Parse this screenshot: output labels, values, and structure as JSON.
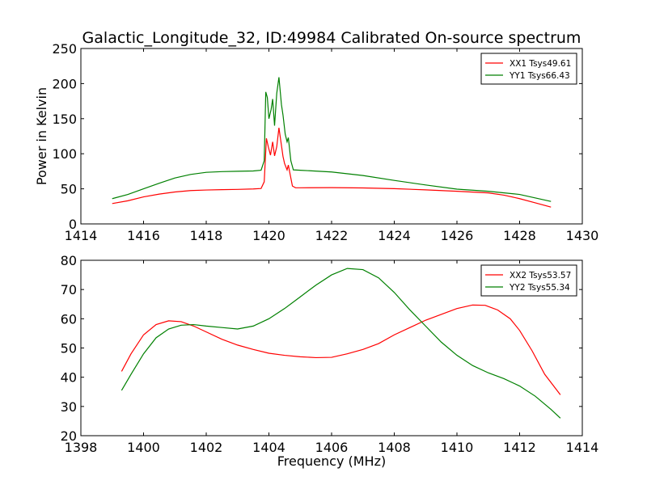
{
  "figure": {
    "title": "Galactic_Longitude_32, ID:49984 Calibrated On-source spectrum",
    "xlabel": "Frequency (MHz)",
    "background": "#ffffff"
  },
  "chart_data": [
    {
      "type": "line",
      "xlabel": "",
      "ylabel": "Power in Kelvin",
      "xlim": [
        1414,
        1430
      ],
      "ylim": [
        0,
        250
      ],
      "xticks": [
        1414,
        1416,
        1418,
        1420,
        1422,
        1424,
        1426,
        1428,
        1430
      ],
      "yticks": [
        0,
        50,
        100,
        150,
        200,
        250
      ],
      "grid": false,
      "legend_position": "top-right",
      "series": [
        {
          "name": "XX1 Tsys49.61",
          "color": "#ff0000",
          "points": [
            [
              1415.0,
              29.0
            ],
            [
              1415.5,
              33.0
            ],
            [
              1416.0,
              38.5
            ],
            [
              1416.5,
              42.5
            ],
            [
              1417.0,
              45.5
            ],
            [
              1417.5,
              47.5
            ],
            [
              1418.0,
              48.3
            ],
            [
              1418.5,
              48.8
            ],
            [
              1419.0,
              49.2
            ],
            [
              1419.5,
              49.8
            ],
            [
              1419.75,
              50.5
            ],
            [
              1419.85,
              60.0
            ],
            [
              1419.92,
              122.0
            ],
            [
              1419.98,
              110.0
            ],
            [
              1420.05,
              98.0
            ],
            [
              1420.12,
              117.0
            ],
            [
              1420.18,
              97.0
            ],
            [
              1420.25,
              110.0
            ],
            [
              1420.32,
              137.0
            ],
            [
              1420.4,
              112.0
            ],
            [
              1420.45,
              96.0
            ],
            [
              1420.5,
              86.0
            ],
            [
              1420.58,
              77.0
            ],
            [
              1420.62,
              84.0
            ],
            [
              1420.68,
              70.0
            ],
            [
              1420.75,
              54.0
            ],
            [
              1420.85,
              51.5
            ],
            [
              1421.0,
              51.5
            ],
            [
              1422.0,
              51.7
            ],
            [
              1423.0,
              51.3
            ],
            [
              1424.0,
              50.3
            ],
            [
              1425.0,
              48.5
            ],
            [
              1426.0,
              46.5
            ],
            [
              1427.0,
              44.2
            ],
            [
              1427.5,
              41.0
            ],
            [
              1428.0,
              36.0
            ],
            [
              1428.5,
              30.0
            ],
            [
              1429.0,
              24.0
            ]
          ]
        },
        {
          "name": "YY1 Tsys66.43",
          "color": "#008000",
          "points": [
            [
              1415.0,
              36.0
            ],
            [
              1415.5,
              42.0
            ],
            [
              1416.0,
              50.0
            ],
            [
              1416.5,
              58.0
            ],
            [
              1417.0,
              65.5
            ],
            [
              1417.5,
              70.5
            ],
            [
              1418.0,
              73.5
            ],
            [
              1418.5,
              74.5
            ],
            [
              1419.0,
              75.0
            ],
            [
              1419.5,
              75.5
            ],
            [
              1419.75,
              76.5
            ],
            [
              1419.85,
              90.0
            ],
            [
              1419.9,
              188.0
            ],
            [
              1419.95,
              180.0
            ],
            [
              1420.0,
              150.0
            ],
            [
              1420.07,
              163.0
            ],
            [
              1420.12,
              178.0
            ],
            [
              1420.18,
              140.0
            ],
            [
              1420.25,
              186.0
            ],
            [
              1420.32,
              209.0
            ],
            [
              1420.4,
              170.0
            ],
            [
              1420.45,
              155.0
            ],
            [
              1420.52,
              128.0
            ],
            [
              1420.58,
              117.0
            ],
            [
              1420.62,
              123.0
            ],
            [
              1420.7,
              90.0
            ],
            [
              1420.78,
              77.0
            ],
            [
              1421.0,
              76.5
            ],
            [
              1422.0,
              74.0
            ],
            [
              1423.0,
              69.0
            ],
            [
              1424.0,
              62.0
            ],
            [
              1425.0,
              55.5
            ],
            [
              1426.0,
              49.5
            ],
            [
              1427.0,
              46.5
            ],
            [
              1428.0,
              42.0
            ],
            [
              1429.0,
              32.0
            ]
          ]
        }
      ]
    },
    {
      "type": "line",
      "xlabel": "Frequency (MHz)",
      "ylabel": "",
      "xlim": [
        1398,
        1414
      ],
      "ylim": [
        20,
        80
      ],
      "xticks": [
        1398,
        1400,
        1402,
        1404,
        1406,
        1408,
        1410,
        1412,
        1414
      ],
      "yticks": [
        20,
        30,
        40,
        50,
        60,
        70,
        80
      ],
      "grid": false,
      "legend_position": "top-right",
      "series": [
        {
          "name": "XX2 Tsys53.57",
          "color": "#ff0000",
          "points": [
            [
              1399.3,
              42.0
            ],
            [
              1399.6,
              48.0
            ],
            [
              1400.0,
              54.5
            ],
            [
              1400.4,
              58.0
            ],
            [
              1400.8,
              59.3
            ],
            [
              1401.2,
              59.0
            ],
            [
              1401.6,
              57.5
            ],
            [
              1402.0,
              55.5
            ],
            [
              1402.5,
              53.0
            ],
            [
              1403.0,
              51.0
            ],
            [
              1403.5,
              49.5
            ],
            [
              1404.0,
              48.2
            ],
            [
              1404.5,
              47.5
            ],
            [
              1405.0,
              47.0
            ],
            [
              1405.5,
              46.7
            ],
            [
              1406.0,
              46.8
            ],
            [
              1406.5,
              48.0
            ],
            [
              1407.0,
              49.5
            ],
            [
              1407.5,
              51.5
            ],
            [
              1408.0,
              54.5
            ],
            [
              1408.5,
              57.0
            ],
            [
              1409.0,
              59.5
            ],
            [
              1409.5,
              61.5
            ],
            [
              1410.0,
              63.5
            ],
            [
              1410.5,
              64.7
            ],
            [
              1410.9,
              64.6
            ],
            [
              1411.3,
              63.0
            ],
            [
              1411.7,
              60.0
            ],
            [
              1412.0,
              56.0
            ],
            [
              1412.4,
              49.0
            ],
            [
              1412.8,
              41.0
            ],
            [
              1413.3,
              34.0
            ]
          ]
        },
        {
          "name": "YY2 Tsys55.34",
          "color": "#008000",
          "points": [
            [
              1399.3,
              35.5
            ],
            [
              1399.6,
              41.0
            ],
            [
              1400.0,
              48.0
            ],
            [
              1400.4,
              53.5
            ],
            [
              1400.8,
              56.5
            ],
            [
              1401.2,
              57.8
            ],
            [
              1401.6,
              58.0
            ],
            [
              1402.0,
              57.5
            ],
            [
              1402.5,
              57.0
            ],
            [
              1403.0,
              56.5
            ],
            [
              1403.5,
              57.5
            ],
            [
              1404.0,
              60.0
            ],
            [
              1404.5,
              63.5
            ],
            [
              1405.0,
              67.5
            ],
            [
              1405.5,
              71.5
            ],
            [
              1406.0,
              75.0
            ],
            [
              1406.5,
              77.2
            ],
            [
              1407.0,
              76.8
            ],
            [
              1407.5,
              74.0
            ],
            [
              1408.0,
              69.0
            ],
            [
              1408.5,
              63.0
            ],
            [
              1409.0,
              57.5
            ],
            [
              1409.5,
              52.0
            ],
            [
              1410.0,
              47.5
            ],
            [
              1410.5,
              44.0
            ],
            [
              1411.0,
              41.5
            ],
            [
              1411.5,
              39.5
            ],
            [
              1412.0,
              37.0
            ],
            [
              1412.5,
              33.5
            ],
            [
              1413.0,
              29.0
            ],
            [
              1413.3,
              26.0
            ]
          ]
        }
      ]
    }
  ]
}
